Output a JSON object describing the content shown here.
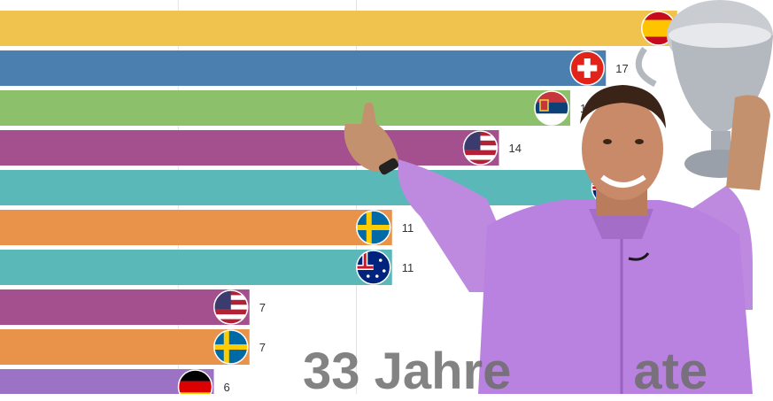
{
  "chart_data": {
    "type": "bar",
    "orientation": "horizontal",
    "categories": [
      "Spain",
      "Switzerland",
      "Serbia",
      "USA",
      "Australia",
      "Sweden",
      "Australia",
      "USA",
      "Sweden",
      "Germany"
    ],
    "values": [
      19,
      17,
      16,
      14,
      null,
      11,
      11,
      7,
      7,
      6
    ],
    "value_labels": [
      "",
      "17",
      "16",
      "14",
      "",
      "11",
      "11",
      "7",
      "7",
      "6"
    ],
    "colors": [
      "#f0c24e",
      "#4a7fb0",
      "#8cc06a",
      "#a4508e",
      "#5bb8b8",
      "#e8924a",
      "#5bb8b8",
      "#a4508e",
      "#e8924a",
      "#9b72c4"
    ],
    "flags": [
      "spain-flag",
      "switzerland-flag",
      "serbia-flag",
      "usa-flag",
      "australia-flag",
      "sweden-flag",
      "australia-flag",
      "usa-flag",
      "sweden-flag",
      "germany-flag"
    ],
    "grid": true,
    "xlim": [
      0,
      20
    ]
  },
  "headline": "33 Jahre",
  "headline_suffix": "ate",
  "photo": "tennis-player-holding-trophy"
}
